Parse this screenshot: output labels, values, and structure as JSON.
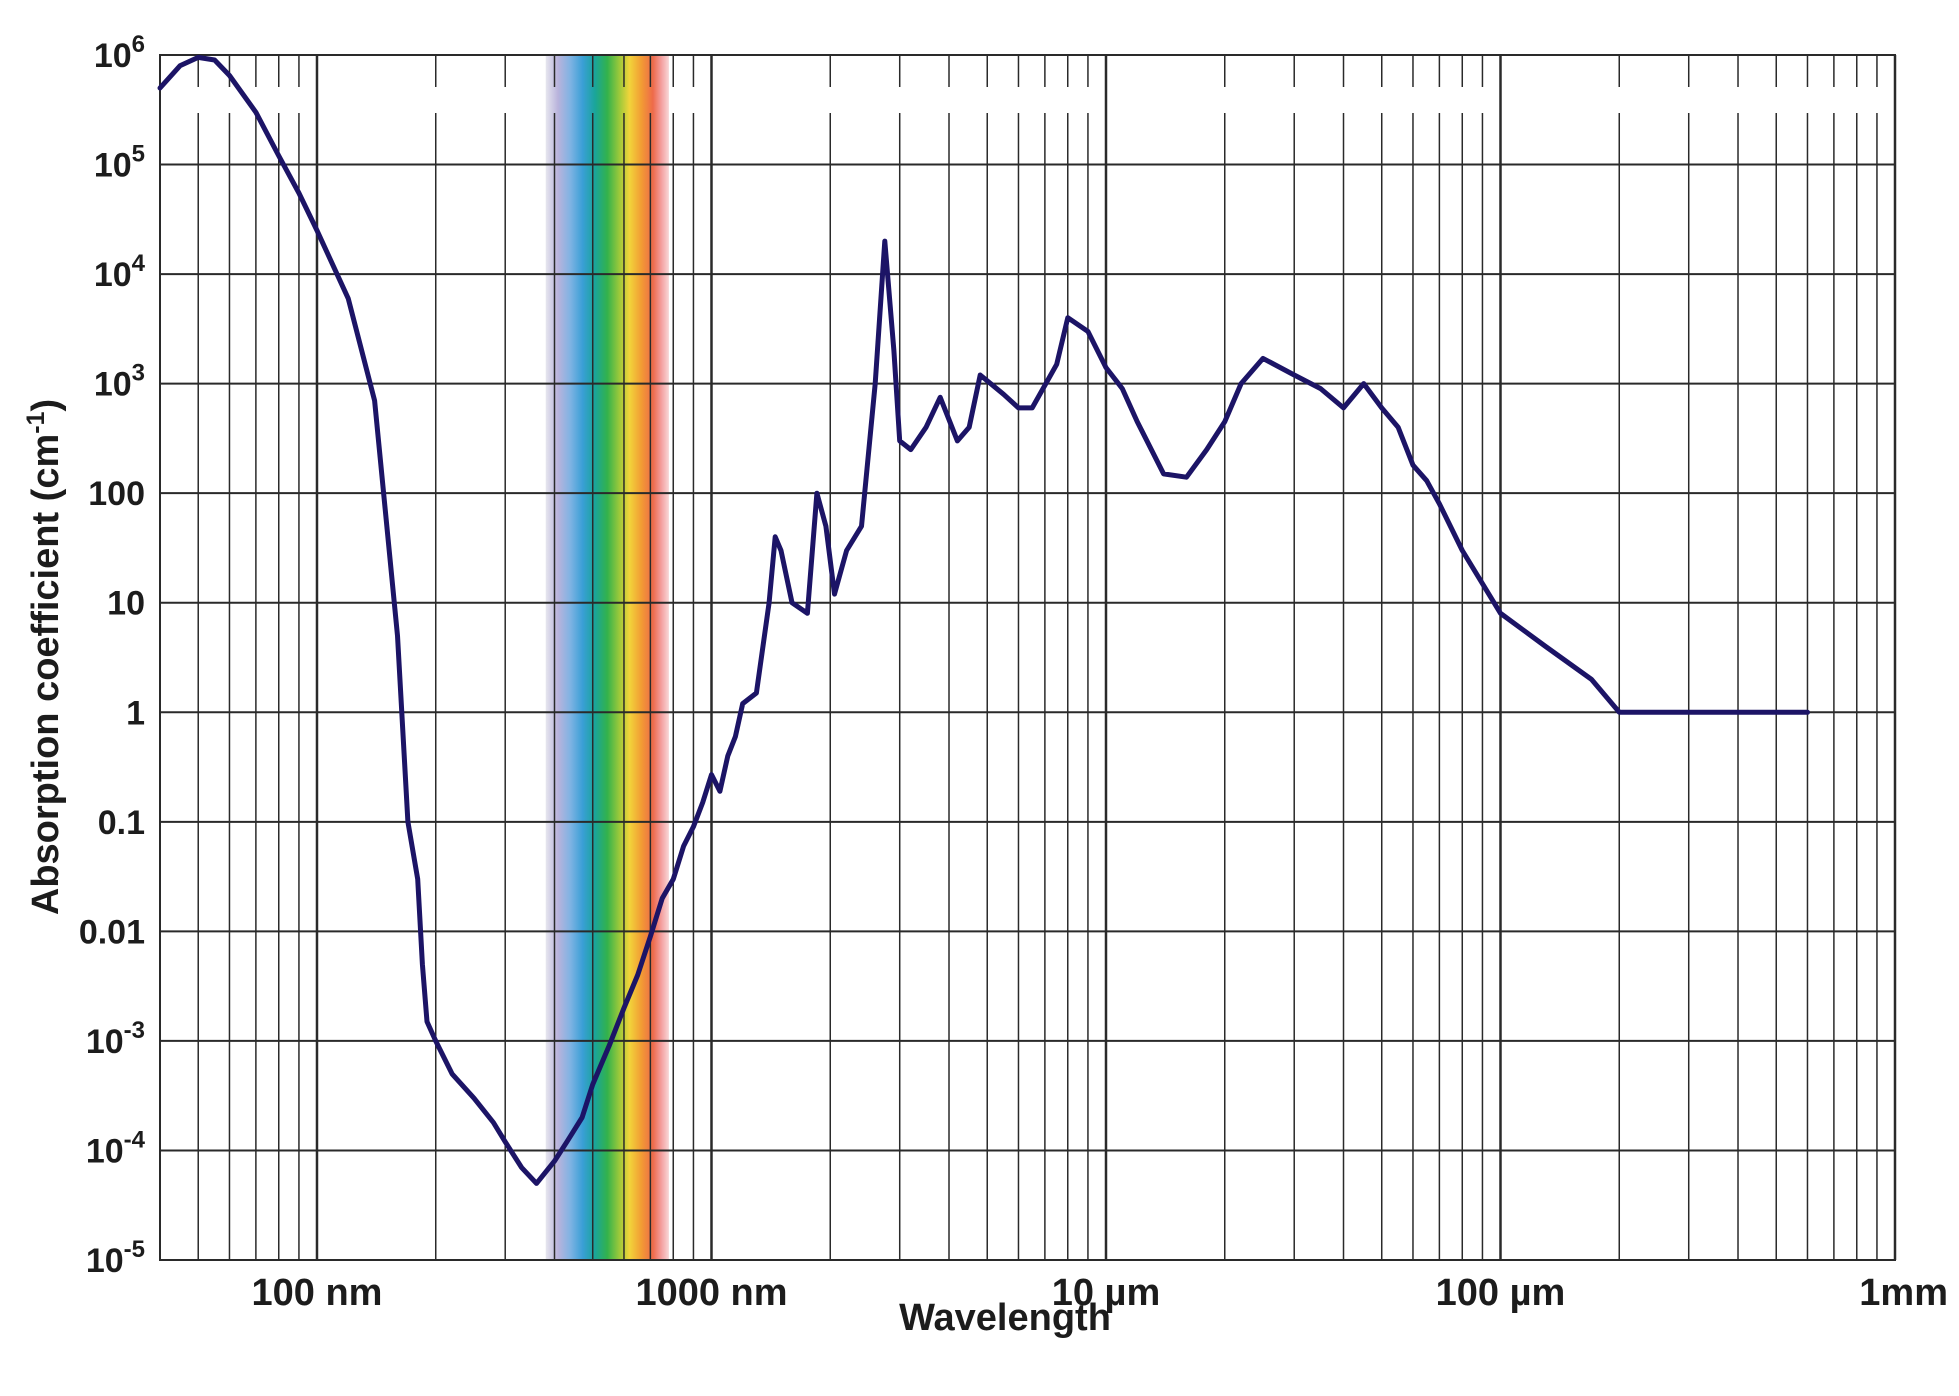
{
  "chart_data": {
    "type": "line",
    "xlabel": "Wavelength",
    "ylabel": "Absorption coefficient (cm",
    "ylabel_sup": "-1",
    "ylabel_close": ")",
    "x_scale": "log",
    "y_scale": "log",
    "xlim": [
      40,
      1000000
    ],
    "ylim": [
      1e-05,
      1000000
    ],
    "grid": true,
    "x_ticks": [
      {
        "value": 100,
        "label": "100 nm"
      },
      {
        "value": 1000,
        "label": "1000 nm"
      },
      {
        "value": 10000,
        "label": "10 µm"
      },
      {
        "value": 100000,
        "label": "100 µm"
      },
      {
        "value": 1000000,
        "label": "1mm"
      }
    ],
    "y_ticks": [
      {
        "value": 1e-05,
        "base": "10",
        "exp": "-5",
        "label": ""
      },
      {
        "value": 0.0001,
        "base": "10",
        "exp": "-4",
        "label": ""
      },
      {
        "value": 0.001,
        "base": "10",
        "exp": "-3",
        "label": ""
      },
      {
        "value": 0.01,
        "base": "",
        "exp": "",
        "label": "0.01"
      },
      {
        "value": 0.1,
        "base": "",
        "exp": "",
        "label": "0.1"
      },
      {
        "value": 1,
        "base": "",
        "exp": "",
        "label": "1"
      },
      {
        "value": 10,
        "base": "",
        "exp": "",
        "label": "10"
      },
      {
        "value": 100,
        "base": "",
        "exp": "",
        "label": "100"
      },
      {
        "value": 1000,
        "base": "10",
        "exp": "3",
        "label": ""
      },
      {
        "value": 10000,
        "base": "10",
        "exp": "4",
        "label": ""
      },
      {
        "value": 100000,
        "base": "10",
        "exp": "5",
        "label": ""
      },
      {
        "value": 1000000,
        "base": "10",
        "exp": "6",
        "label": ""
      }
    ],
    "visible_band": {
      "from_nm": 380,
      "to_nm": 780
    },
    "colors": {
      "curve": "#1c1466",
      "grid": "#2a2a2a",
      "text": "#1c1c1c"
    },
    "series": [
      {
        "x": [
          40,
          45,
          50,
          55,
          60,
          70,
          80,
          90,
          100,
          120,
          140,
          160,
          170,
          180,
          185,
          190,
          200,
          220,
          250,
          280,
          300,
          330,
          360,
          400,
          430,
          470,
          500,
          550,
          600,
          650,
          700,
          750,
          800,
          850,
          900,
          950,
          1000,
          1050,
          1100,
          1150,
          1200,
          1300,
          1400,
          1450,
          1500,
          1600,
          1750,
          1850,
          1950,
          2050,
          2200,
          2400,
          2600,
          2750,
          2900,
          3000,
          3200,
          3500,
          3800,
          4200,
          4500,
          4800,
          5500,
          6000,
          6500,
          7500,
          8000,
          9000,
          10000,
          11000,
          12000,
          14000,
          16000,
          18000,
          20000,
          22000,
          25000,
          30000,
          35000,
          40000,
          45000,
          50000,
          55000,
          60000,
          65000,
          70000,
          80000,
          100000,
          130000,
          170000,
          200000,
          250000,
          300000,
          400000,
          600000
        ],
        "y": [
          500000,
          800000,
          950000,
          900000,
          650000,
          300000,
          120000,
          55000,
          25000,
          6000,
          700,
          5,
          0.1,
          0.03,
          0.005,
          0.0015,
          0.001,
          0.0005,
          0.0003,
          0.00018,
          0.00012,
          7e-05,
          5e-05,
          8e-05,
          0.00012,
          0.0002,
          0.0004,
          0.0009,
          0.002,
          0.004,
          0.009,
          0.02,
          0.03,
          0.06,
          0.09,
          0.15,
          0.27,
          0.19,
          0.4,
          0.6,
          1.2,
          1.5,
          10,
          40,
          30,
          10,
          8,
          100,
          50,
          12,
          30,
          50,
          1000,
          20000,
          2000,
          300,
          250,
          400,
          750,
          300,
          400,
          1200,
          800,
          600,
          600,
          1500,
          4000,
          3000,
          1400,
          900,
          450,
          150,
          140,
          250,
          450,
          1000,
          1700,
          1200,
          900,
          600,
          1000,
          600,
          400,
          180,
          130,
          80,
          30,
          8,
          4,
          2,
          1,
          1,
          1,
          1,
          1
        ]
      }
    ]
  }
}
